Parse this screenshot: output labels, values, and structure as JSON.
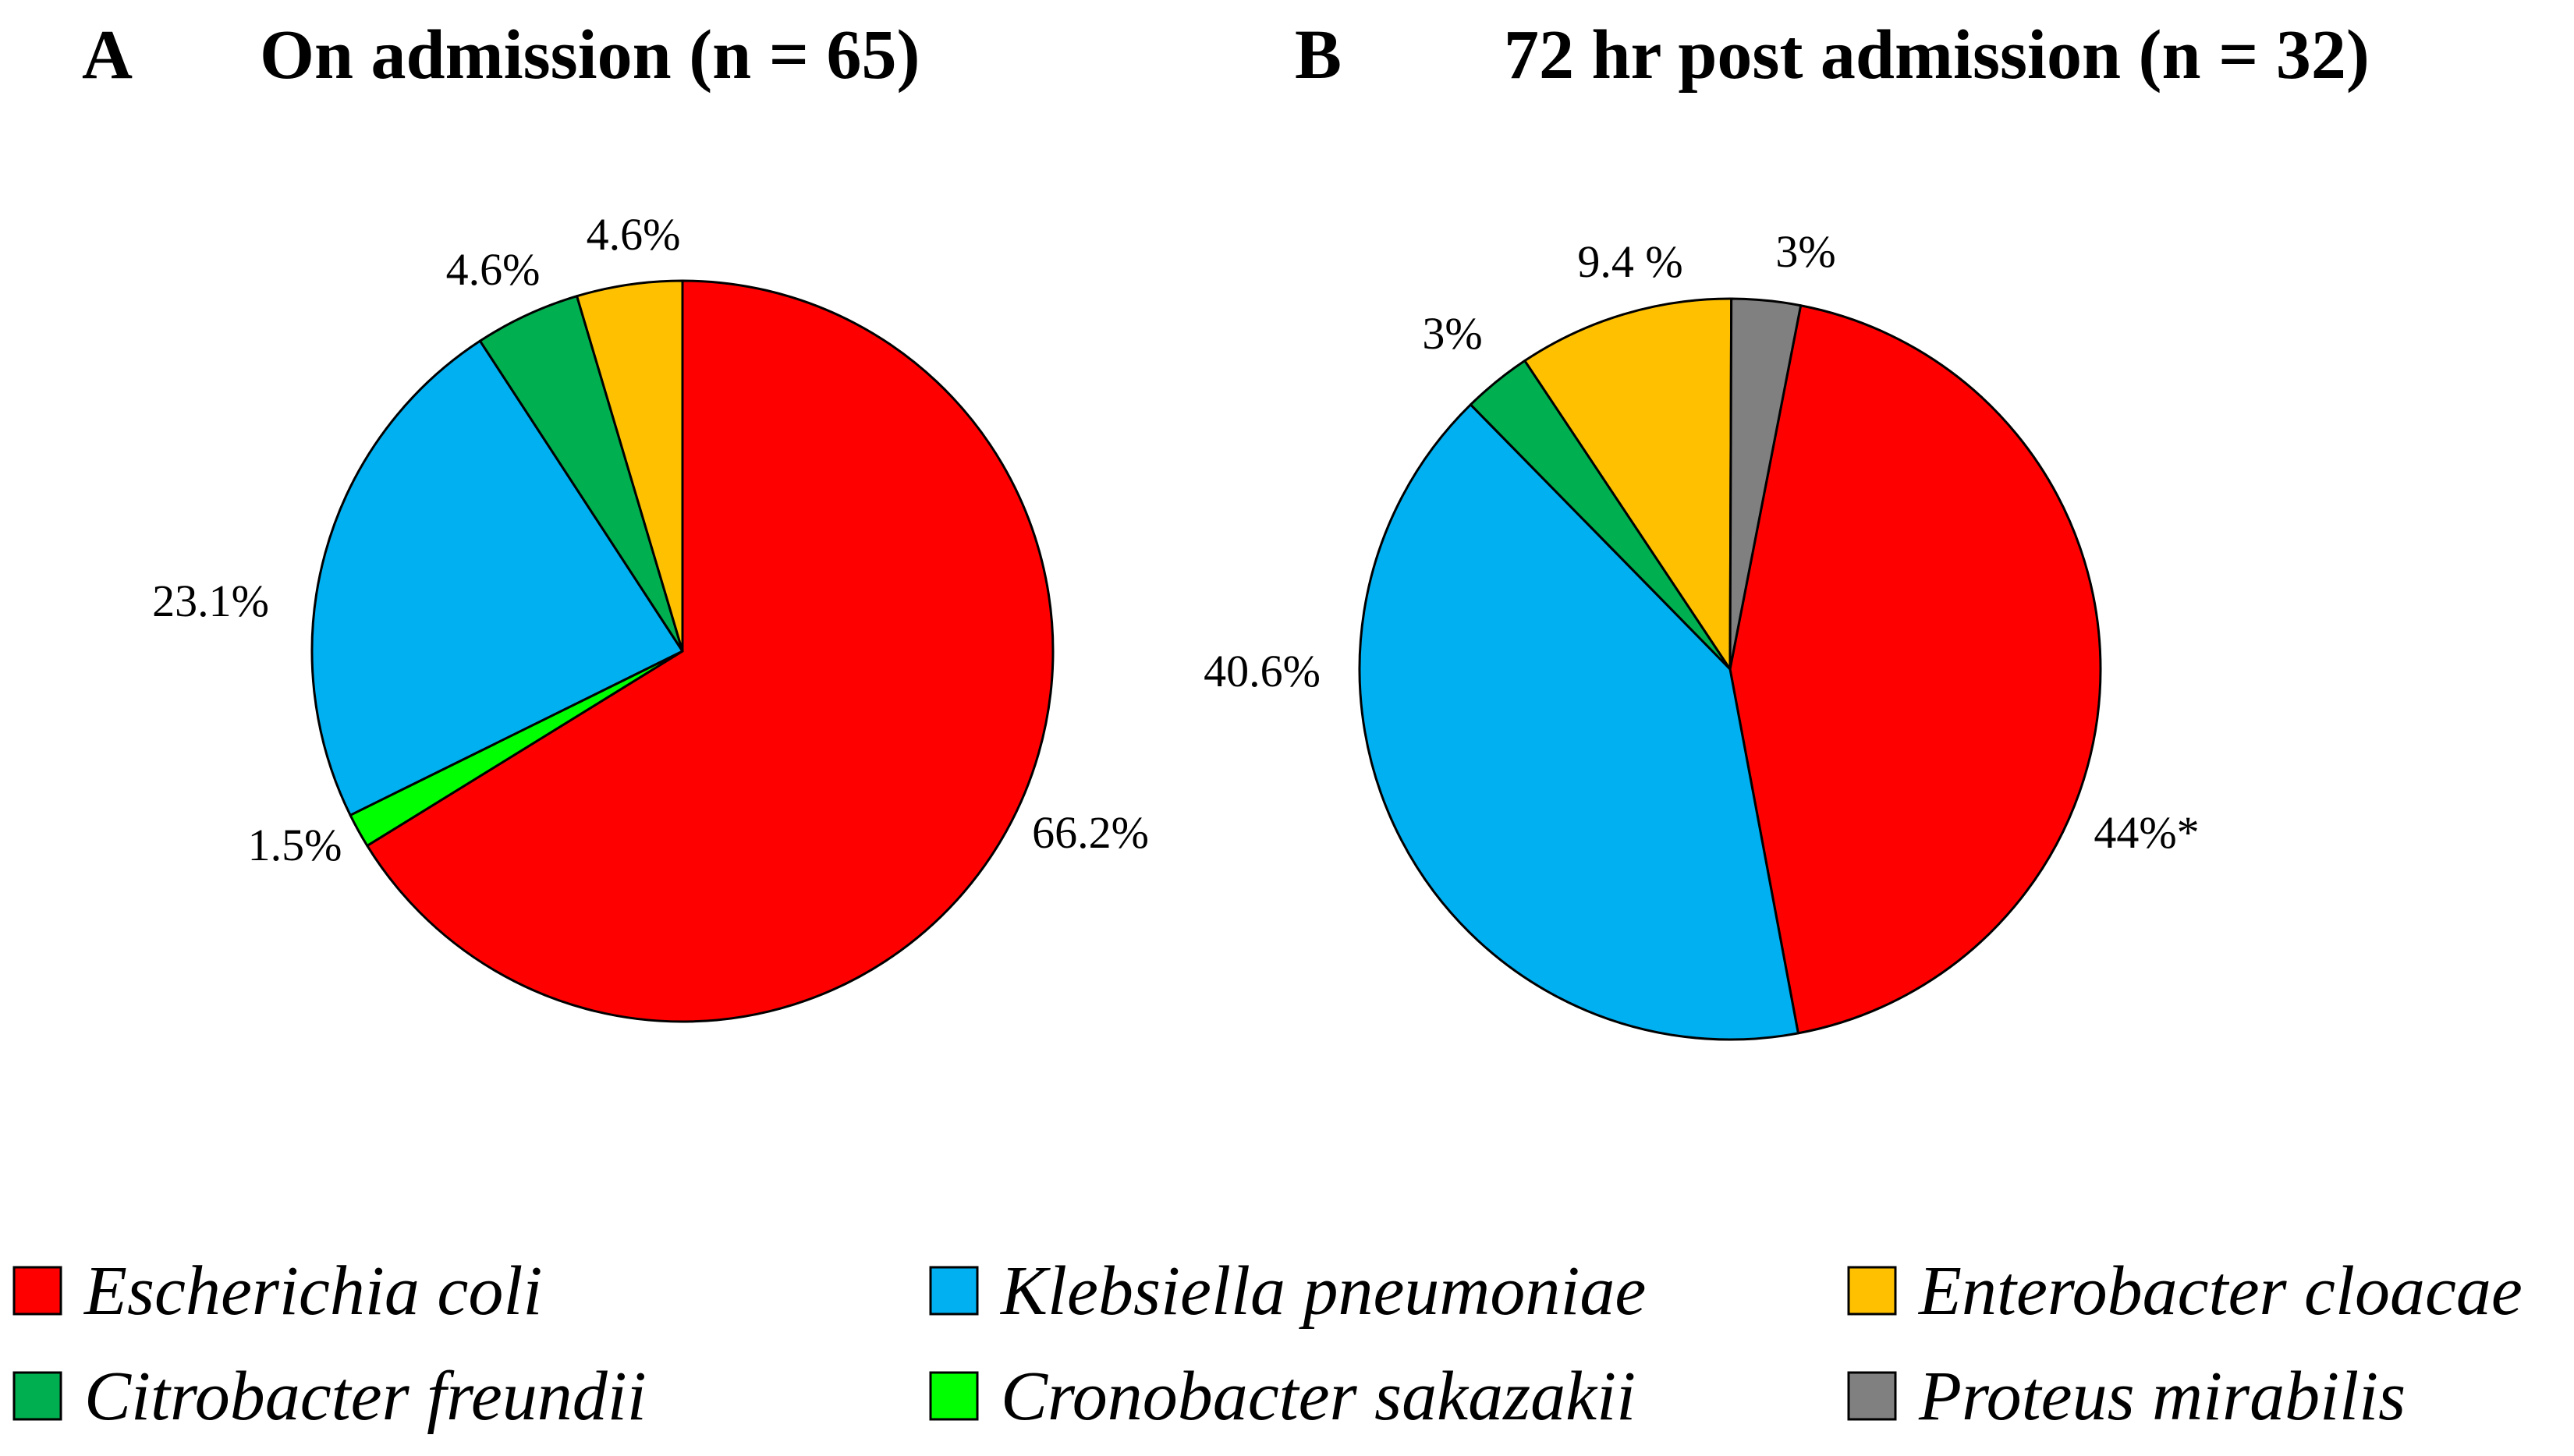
{
  "chart_data": [
    {
      "type": "pie",
      "panel": "A",
      "title": "On admission (n = 65)",
      "slices": [
        {
          "name": "Escherichia coli",
          "value": 66.2,
          "label": "66.2%",
          "color": "#ff0000"
        },
        {
          "name": "Cronobacter sakazakii",
          "value": 1.5,
          "label": "1.5%",
          "color": "#00ff00"
        },
        {
          "name": "Klebsiella pneumoniae",
          "value": 23.1,
          "label": "23.1%",
          "color": "#00b0f0"
        },
        {
          "name": "Citrobacter freundii",
          "value": 4.6,
          "label": "4.6%",
          "color": "#00b050"
        },
        {
          "name": "Enterobacter cloacae",
          "value": 4.6,
          "label": "4.6%",
          "color": "#ffc000"
        }
      ]
    },
    {
      "type": "pie",
      "panel": "B",
      "title": "72 hr post admission (n = 32)",
      "slices": [
        {
          "name": "Escherichia coli",
          "value": 44,
          "label": "44%*",
          "color": "#ff0000"
        },
        {
          "name": "Klebsiella pneumoniae",
          "value": 40.6,
          "label": "40.6%",
          "color": "#00b0f0"
        },
        {
          "name": "Citrobacter freundii",
          "value": 3,
          "label": "3%",
          "color": "#00b050"
        },
        {
          "name": "Enterobacter cloacae",
          "value": 9.4,
          "label": "9.4 %",
          "color": "#ffc000"
        },
        {
          "name": "Proteus mirabilis",
          "value": 3,
          "label": "3%",
          "color": "#808080"
        }
      ]
    }
  ],
  "legend": [
    {
      "name": "Escherichia coli",
      "color": "#ff0000"
    },
    {
      "name": "Klebsiella pneumoniae",
      "color": "#00b0f0"
    },
    {
      "name": "Enterobacter cloacae",
      "color": "#ffc000"
    },
    {
      "name": "Citrobacter freundii",
      "color": "#00b050"
    },
    {
      "name": "Cronobacter sakazakii",
      "color": "#00ff00"
    },
    {
      "name": "Proteus mirabilis",
      "color": "#808080"
    }
  ]
}
